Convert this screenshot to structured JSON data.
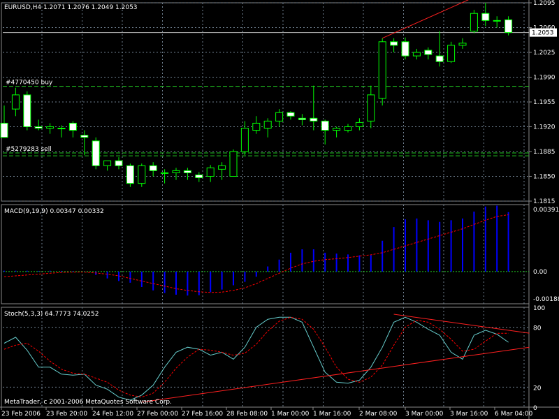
{
  "chart_data": [
    {
      "type": "candlestick",
      "symbol_header": "EURUSD,H4  1.2071 1.2076 1.2049 1.2053",
      "ylim": [
        1.1815,
        1.2095
      ],
      "price_axis_ticks": [
        "1.2095",
        "1.2060",
        "1.2025",
        "1.1990",
        "1.1955",
        "1.1920",
        "1.1885",
        "1.1850",
        "1.1815"
      ],
      "current_price_label": "1.2053",
      "current_price": 1.2053,
      "order_lines": [
        {
          "label": "#4770450 buy",
          "price": 1.1977,
          "color": "#22cc22"
        },
        {
          "label": "#5279283 sell",
          "price": 1.1883,
          "color": "#22cc22"
        },
        {
          "label": "",
          "price": 1.1879,
          "color": "#22cc22"
        }
      ],
      "trendline": {
        "from": {
          "index": 33,
          "price": 1.2045
        },
        "to": {
          "index": 42,
          "price": 1.211
        },
        "color": "#ff2020"
      },
      "candles": [
        {
          "o": 1.1925,
          "h": 1.195,
          "l": 1.1905,
          "c": 1.1905
        },
        {
          "o": 1.1945,
          "h": 1.1975,
          "l": 1.1935,
          "c": 1.1965
        },
        {
          "o": 1.1965,
          "h": 1.197,
          "l": 1.1915,
          "c": 1.192
        },
        {
          "o": 1.192,
          "h": 1.193,
          "l": 1.1915,
          "c": 1.1918
        },
        {
          "o": 1.1918,
          "h": 1.1925,
          "l": 1.191,
          "c": 1.192
        },
        {
          "o": 1.1918,
          "h": 1.1922,
          "l": 1.1905,
          "c": 1.1918
        },
        {
          "o": 1.1925,
          "h": 1.1928,
          "l": 1.1905,
          "c": 1.1915
        },
        {
          "o": 1.1908,
          "h": 1.1915,
          "l": 1.188,
          "c": 1.1905
        },
        {
          "o": 1.19,
          "h": 1.1905,
          "l": 1.186,
          "c": 1.1865
        },
        {
          "o": 1.1865,
          "h": 1.187,
          "l": 1.1858,
          "c": 1.1872
        },
        {
          "o": 1.1872,
          "h": 1.1877,
          "l": 1.186,
          "c": 1.1865
        },
        {
          "o": 1.1865,
          "h": 1.1868,
          "l": 1.1835,
          "c": 1.184
        },
        {
          "o": 1.184,
          "h": 1.1868,
          "l": 1.1835,
          "c": 1.1865
        },
        {
          "o": 1.1865,
          "h": 1.187,
          "l": 1.185,
          "c": 1.1858
        },
        {
          "o": 1.1855,
          "h": 1.186,
          "l": 1.184,
          "c": 1.1855
        },
        {
          "o": 1.1855,
          "h": 1.1862,
          "l": 1.1845,
          "c": 1.1858
        },
        {
          "o": 1.1858,
          "h": 1.1862,
          "l": 1.1845,
          "c": 1.1855
        },
        {
          "o": 1.1852,
          "h": 1.1856,
          "l": 1.1842,
          "c": 1.1848
        },
        {
          "o": 1.185,
          "h": 1.1866,
          "l": 1.1842,
          "c": 1.1862
        },
        {
          "o": 1.186,
          "h": 1.187,
          "l": 1.1845,
          "c": 1.1865
        },
        {
          "o": 1.185,
          "h": 1.1888,
          "l": 1.185,
          "c": 1.1885
        },
        {
          "o": 1.1885,
          "h": 1.1928,
          "l": 1.188,
          "c": 1.1918
        },
        {
          "o": 1.1915,
          "h": 1.1935,
          "l": 1.191,
          "c": 1.1925
        },
        {
          "o": 1.1918,
          "h": 1.1932,
          "l": 1.1905,
          "c": 1.1928
        },
        {
          "o": 1.1928,
          "h": 1.1945,
          "l": 1.192,
          "c": 1.194
        },
        {
          "o": 1.194,
          "h": 1.1942,
          "l": 1.193,
          "c": 1.1935
        },
        {
          "o": 1.1932,
          "h": 1.1938,
          "l": 1.1922,
          "c": 1.193
        },
        {
          "o": 1.1932,
          "h": 1.1978,
          "l": 1.1915,
          "c": 1.1928
        },
        {
          "o": 1.1928,
          "h": 1.193,
          "l": 1.1895,
          "c": 1.1915
        },
        {
          "o": 1.1915,
          "h": 1.192,
          "l": 1.1905,
          "c": 1.1918
        },
        {
          "o": 1.1915,
          "h": 1.1924,
          "l": 1.1912,
          "c": 1.192
        },
        {
          "o": 1.192,
          "h": 1.1932,
          "l": 1.1915,
          "c": 1.1926
        },
        {
          "o": 1.1928,
          "h": 1.1978,
          "l": 1.1918,
          "c": 1.1965
        },
        {
          "o": 1.196,
          "h": 1.2045,
          "l": 1.195,
          "c": 1.204
        },
        {
          "o": 1.204,
          "h": 1.2045,
          "l": 1.2025,
          "c": 1.2035
        },
        {
          "o": 1.204,
          "h": 1.2046,
          "l": 1.2015,
          "c": 1.202
        },
        {
          "o": 1.202,
          "h": 1.203,
          "l": 1.2015,
          "c": 1.2025
        },
        {
          "o": 1.2028,
          "h": 1.2032,
          "l": 1.2015,
          "c": 1.2022
        },
        {
          "o": 1.202,
          "h": 1.2055,
          "l": 1.2005,
          "c": 1.2012
        },
        {
          "o": 1.2012,
          "h": 1.204,
          "l": 1.201,
          "c": 1.2035
        },
        {
          "o": 1.2035,
          "h": 1.2045,
          "l": 1.203,
          "c": 1.2038
        },
        {
          "o": 1.2055,
          "h": 1.2085,
          "l": 1.2052,
          "c": 1.208
        },
        {
          "o": 1.208,
          "h": 1.2095,
          "l": 1.2062,
          "c": 1.207
        },
        {
          "o": 1.207,
          "h": 1.2076,
          "l": 1.206,
          "c": 1.207
        },
        {
          "o": 1.2071,
          "h": 1.2076,
          "l": 1.2049,
          "c": 1.2053
        }
      ]
    },
    {
      "type": "histogram+line",
      "label": "MACD(9,19,9) 0.00347 0.00332",
      "ylim": [
        -0.00188,
        0.00391
      ],
      "axis_ticks": [
        "0.00391",
        "0.00",
        "-0.00188"
      ],
      "histogram": [
        5e-05,
        5e-05,
        5e-05,
        4e-05,
        5e-05,
        4e-05,
        3e-05,
        1e-05,
        -0.0002,
        -0.0004,
        -0.00055,
        -0.00065,
        -0.0009,
        -0.0011,
        -0.00125,
        -0.00135,
        -0.0014,
        -0.00138,
        -0.0012,
        -0.00105,
        -0.0008,
        -0.0006,
        -0.0003,
        0.0003,
        0.0007,
        0.0011,
        0.0013,
        0.0013,
        0.0011,
        0.00105,
        0.001,
        0.00095,
        0.00095,
        0.0018,
        0.0026,
        0.00305,
        0.0031,
        0.003,
        0.0029,
        0.003,
        0.0031,
        0.0035,
        0.0038,
        0.00385,
        0.00347
      ],
      "signal": [
        -0.0003,
        -0.00025,
        -0.0002,
        -0.00015,
        -0.0001,
        -5e-05,
        -3e-05,
        -3e-05,
        -8e-05,
        -0.00015,
        -0.00025,
        -0.0004,
        -0.00055,
        -0.0007,
        -0.00085,
        -0.001,
        -0.0011,
        -0.00118,
        -0.00122,
        -0.0012,
        -0.0011,
        -0.00095,
        -0.0007,
        -0.0004,
        -0.0001,
        0.0002,
        0.00045,
        0.0006,
        0.0007,
        0.00075,
        0.00082,
        0.0009,
        0.00098,
        0.0011,
        0.0013,
        0.0015,
        0.0017,
        0.0019,
        0.0021,
        0.0023,
        0.0025,
        0.00275,
        0.003,
        0.00322,
        0.00332
      ]
    },
    {
      "type": "line",
      "label": "Stoch(5,3,3) 64.7773 74.0252",
      "ylim": [
        0,
        100
      ],
      "axis_ticks": [
        "100",
        "80",
        "20",
        "0"
      ],
      "k_line": [
        64,
        70,
        57,
        40,
        40,
        33,
        32,
        33,
        22,
        18,
        10,
        7,
        12,
        22,
        40,
        55,
        60,
        58,
        52,
        55,
        48,
        60,
        80,
        88,
        90,
        90,
        85,
        60,
        35,
        25,
        24,
        27,
        40,
        60,
        85,
        90,
        85,
        78,
        72,
        55,
        48,
        72,
        77,
        73,
        65
      ],
      "d_line": [
        58,
        62,
        64,
        56,
        46,
        38,
        34,
        33,
        29,
        25,
        17,
        12,
        10,
        14,
        25,
        39,
        50,
        58,
        57,
        55,
        52,
        54,
        63,
        76,
        86,
        90,
        88,
        78,
        60,
        40,
        28,
        25,
        30,
        42,
        62,
        80,
        87,
        85,
        78,
        68,
        56,
        58,
        66,
        74,
        74
      ],
      "trendline_upper": {
        "from": {
          "index": 34,
          "value": 93
        },
        "to": {
          "index": 44,
          "value": 74
        },
        "color": "#ff2020"
      },
      "trendline_lower": {
        "from": {
          "index": 12,
          "value": 5
        },
        "to": {
          "index": 44,
          "value": 60
        },
        "color": "#ff2020"
      }
    }
  ],
  "time_axis": [
    "23 Feb 2006",
    "23 Feb 20:00",
    "24 Feb 12:00",
    "27 Feb 00:00",
    "27 Feb 16:00",
    "28 Feb 08:00",
    "1 Mar 00:00",
    "1 Mar 16:00",
    "2 Mar 08:00",
    "3 Mar 00:00",
    "3 Mar 16:00",
    "6 Mar 04:00"
  ],
  "copyright": "MetaTrader, c 2001-2006 MetaQuotes Software Corp.",
  "colors": {
    "grid": "#708090",
    "bull_body": "#000000",
    "bull_border": "#00ff00",
    "bear_body": "#ffffff",
    "wick": "#00ff00",
    "macd_hist": "#0000ff",
    "macd_signal": "#ff0000",
    "stoch_k": "#66cccc",
    "stoch_d": "#ff0000",
    "axis_text": "#ffffff"
  }
}
